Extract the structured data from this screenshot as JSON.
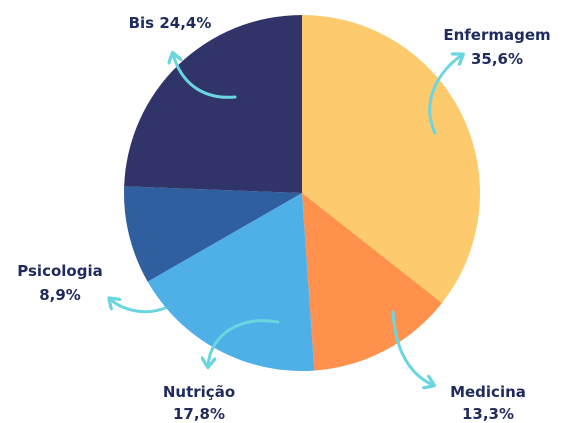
{
  "chart_data": {
    "type": "pie",
    "categories": [
      "Enfermagem",
      "Medicina",
      "Nutrição",
      "Psicologia",
      "Bis"
    ],
    "values": [
      35.6,
      13.3,
      17.8,
      8.9,
      24.4
    ],
    "value_labels": [
      "35,6%",
      "13,3%",
      "17,8%",
      "8,9%",
      "24,4%"
    ],
    "colors": [
      "#fdcb6e",
      "#ff914d",
      "#4fb0e8",
      "#2f5f9e",
      "#313468"
    ]
  }
}
